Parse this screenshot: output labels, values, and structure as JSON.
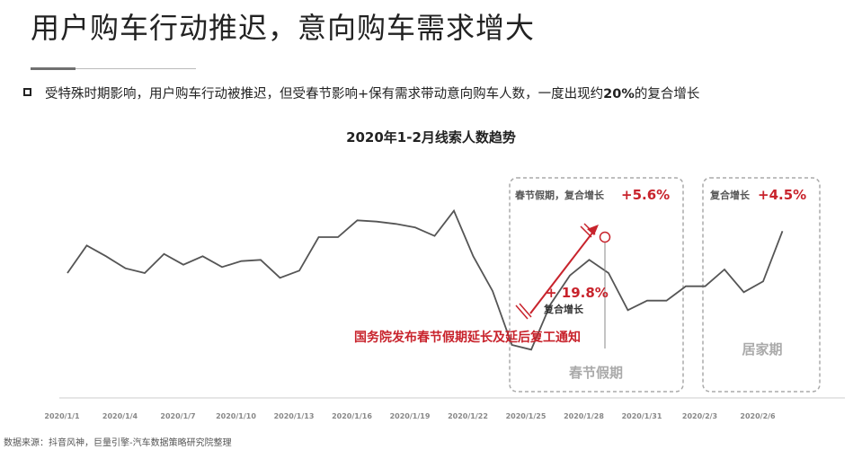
{
  "header": {
    "title": "用户购车行动推迟，意向购车需求增大"
  },
  "bullet": {
    "text_before": "受特殊时期影响，用户购车行动被推迟，但受春节影响+保有需求带动意向购车人数，一度出现约",
    "highlight": "20%",
    "text_after": "的复合增长"
  },
  "footer": {
    "source": "数据来源：抖音风神，巨量引擎-汽车数据策略研究院整理"
  },
  "colors": {
    "line": "#555555",
    "accent_red": "#c8232c",
    "box_border": "#aaaaaa",
    "axis": "#cccccc"
  },
  "chart_data": {
    "type": "line",
    "title": "2020年1-2月线索人数趋势",
    "tick_labels": [
      "2020/1/1",
      "2020/1/4",
      "2020/1/7",
      "2020/1/10",
      "2020/1/13",
      "2020/1/16",
      "2020/1/19",
      "2020/1/22",
      "2020/1/25",
      "2020/1/28",
      "2020/1/31",
      "2020/2/3",
      "2020/2/6"
    ],
    "series": [
      {
        "values": [
          42,
          65,
          56,
          46,
          42,
          58,
          49,
          56,
          47,
          52,
          53,
          38,
          44,
          72,
          72,
          86,
          85,
          83,
          80,
          73,
          94,
          56,
          27,
          -18,
          -22,
          16,
          40,
          53,
          42,
          11,
          19,
          19,
          31,
          31,
          45,
          26,
          35,
          77
        ]
      }
    ],
    "ylim": [
      -60,
      120
    ],
    "grid": false,
    "annotations": {
      "spring_festival": {
        "box_label": "春节假期，复合增长",
        "growth": "+5.6%",
        "period_label": "春节假期"
      },
      "home_period": {
        "box_label": "复合增长",
        "growth": "+4.5%",
        "period_label": "居家期"
      },
      "surge": {
        "growth": "+ 19.8%",
        "label": "复合增长"
      },
      "notice": "国务院发布春节假期延长及延后复工通知"
    }
  }
}
